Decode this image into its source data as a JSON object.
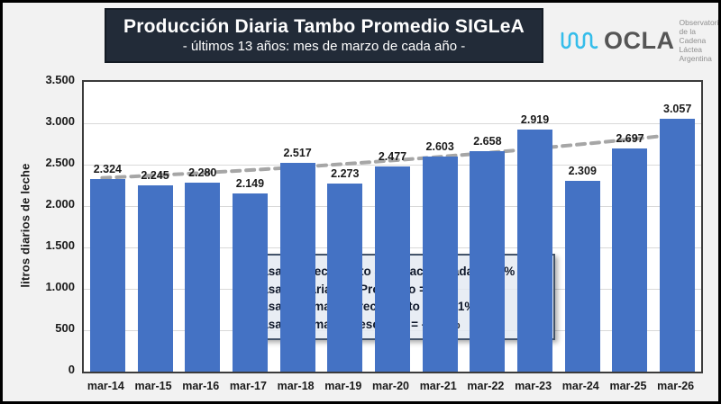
{
  "header": {
    "title": "Producción Diaria Tambo Promedio SIGLeA",
    "subtitle": "- últimos 13 años: mes de marzo de cada año -"
  },
  "logo": {
    "wordmark": "OCLA",
    "tagline_lines": [
      "Observatorio",
      "de la Cadena Láctea",
      "Argentina"
    ],
    "icon": "wave-icon",
    "icon_color": "#35BDEA",
    "wordmark_color": "#555555",
    "tagline_color": "#8F8F8F"
  },
  "annotation_box": {
    "lines": [
      "Tasa de crecimiento anual acumulada = 2,3%",
      "Tasa de variación Promedio = 2,9%",
      "Tasa máxima de crecimiento = +17,1%",
      "Tasa máxima de descenso = -20,9%"
    ]
  },
  "chart_data": {
    "type": "bar",
    "title": "Producción Diaria Tambo Promedio SIGLeA",
    "subtitle": "- últimos 13 años: mes de marzo de cada año -",
    "categories": [
      "mar-14",
      "mar-15",
      "mar-16",
      "mar-17",
      "mar-18",
      "mar-19",
      "mar-20",
      "mar-21",
      "mar-22",
      "mar-23",
      "mar-24",
      "mar-25",
      "mar-26"
    ],
    "values": [
      2324,
      2245,
      2280,
      2149,
      2517,
      2273,
      2477,
      2603,
      2658,
      2919,
      2309,
      2697,
      3057
    ],
    "value_labels": [
      "2.324",
      "2.245",
      "2.280",
      "2.149",
      "2.517",
      "2.273",
      "2.477",
      "2.603",
      "2.658",
      "2.919",
      "2.309",
      "2.697",
      "3.057"
    ],
    "xlabel": "",
    "ylabel": "litros diarios de leche",
    "ylim": [
      0,
      3500
    ],
    "ytick_interval": 500,
    "ytick_labels": [
      "3.500",
      "3.000",
      "2.500",
      "2.000",
      "1.500",
      "1.000",
      "500",
      "0"
    ],
    "grid": true,
    "legend": "none",
    "bar_color": "#4472C4",
    "grid_color": "#D9D9D9",
    "trendline": {
      "style": "dashed",
      "color": "#A6A6A6",
      "arrow_color": "#44546A",
      "start_value": 2340,
      "end_value": 2880
    }
  }
}
